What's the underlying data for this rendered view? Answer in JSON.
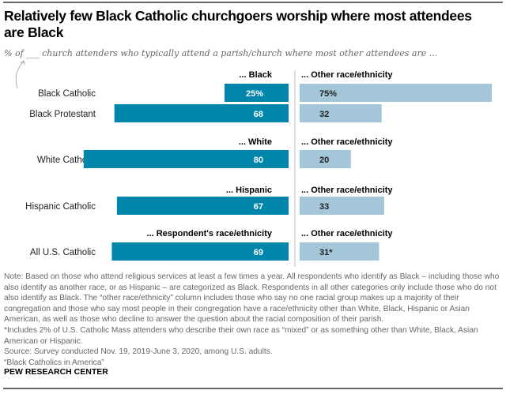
{
  "title": "Relatively few Black Catholic churchgoers worship where most attendees are Black",
  "subtitle": "% of ___ church attenders who typically attend a parish/church where most other attendees are ...",
  "colors": {
    "left": "#0086ab",
    "right": "#a3c6d8"
  },
  "chart_data": {
    "type": "bar",
    "orientation": "horizontal",
    "categories": [
      "Black Catholic",
      "Black Protestant",
      "White Catholic",
      "Hispanic Catholic",
      "All U.S. Catholic"
    ],
    "groups": [
      {
        "left_header": "... Black",
        "right_header": "... Other race/ethnicity",
        "rows": [
          0,
          1
        ]
      },
      {
        "left_header": "... White",
        "right_header": "... Other race/ethnicity",
        "rows": [
          2
        ]
      },
      {
        "left_header": "... Hispanic",
        "right_header": "... Other race/ethnicity",
        "rows": [
          3
        ]
      },
      {
        "left_header": "... Respondent's race/ethnicity",
        "right_header": "... Other race/ethnicity",
        "rows": [
          4
        ]
      }
    ],
    "series": [
      {
        "values": [
          25,
          68,
          80,
          67,
          69
        ],
        "labels": [
          "25%",
          "68",
          "80",
          "67",
          "69"
        ]
      },
      {
        "values": [
          75,
          32,
          20,
          33,
          31
        ],
        "labels": [
          "75%",
          "32",
          "20",
          "33",
          "31*"
        ]
      }
    ]
  },
  "notes": [
    "Note: Based on those who attend religious services at least a few times a year. All respondents who identify as Black – including those who also identify as another race, or as Hispanic – are categorized as Black. Respondents in all other categories only include those who do not also identify as Black. The “other race/ethnicity” column includes those who say no one racial group makes up a majority of their congregation and those who say most people in their congregation have a race/ethnicity other than White, Black, Hispanic or Asian American, as well as those who decline to answer the question about the racial composition of their parish.",
    "*Includes 2% of U.S. Catholic Mass attenders who describe their own race as “mixed” or as something other than White, Black, Asian American or Hispanic.",
    "Source: Survey conducted Nov. 19, 2019-June 3, 2020, among U.S. adults.",
    "“Black Catholics in America”"
  ],
  "source_org": "PEW RESEARCH CENTER"
}
